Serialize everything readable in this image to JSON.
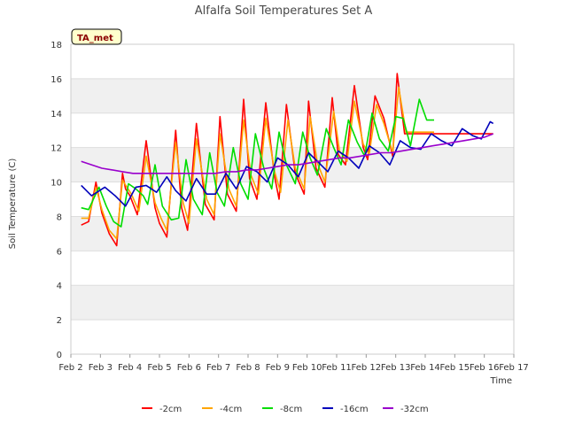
{
  "chart_data": {
    "type": "line",
    "title": "Alfalfa Soil Temperatures Set A",
    "xlabel": "Time",
    "ylabel": "Soil Temperature (C)",
    "badge": "TA_met",
    "xlim": [
      2,
      17
    ],
    "ylim": [
      0,
      18
    ],
    "x_ticks": [
      2,
      3,
      4,
      5,
      6,
      7,
      8,
      9,
      10,
      11,
      12,
      13,
      14,
      15,
      16,
      17
    ],
    "x_tick_labels": [
      "Feb 2",
      "Feb 3",
      "Feb 4",
      "Feb 5",
      "Feb 6",
      "Feb 7",
      "Feb 8",
      "Feb 9",
      "Feb 10",
      "Feb 11",
      "Feb 12",
      "Feb 13",
      "Feb 14",
      "Feb 15",
      "Feb 16",
      "Feb 17"
    ],
    "y_ticks": [
      0,
      2,
      4,
      6,
      8,
      10,
      12,
      14,
      16,
      18
    ],
    "y_tick_labels": [
      "0",
      "2",
      "4",
      "6",
      "8",
      "10",
      "12",
      "14",
      "16",
      "18"
    ],
    "grid": "horizontal bands",
    "legend_position": "bottom",
    "series": [
      {
        "name": "-2cm",
        "color": "#ff0000",
        "x": [
          2.35,
          2.6,
          2.85,
          3.05,
          3.3,
          3.55,
          3.75,
          3.85,
          4.0,
          4.25,
          4.55,
          4.85,
          5.0,
          5.25,
          5.55,
          5.75,
          5.95,
          6.25,
          6.55,
          6.85,
          7.05,
          7.3,
          7.6,
          7.85,
          8.05,
          8.3,
          8.6,
          8.9,
          9.05,
          9.3,
          9.6,
          9.9,
          10.05,
          10.3,
          10.6,
          10.85,
          11.05,
          11.3,
          11.6,
          11.9,
          12.05,
          12.3,
          12.6,
          12.9,
          13.05,
          13.3,
          13.6,
          13.9,
          14.05,
          14.3,
          14.6,
          14.9,
          15.05,
          15.3,
          15.6,
          15.9,
          16.05,
          16.3
        ],
        "y": [
          7.5,
          7.7,
          10.0,
          8.2,
          7.0,
          6.3,
          10.5,
          9.6,
          9.2,
          8.1,
          12.4,
          8.5,
          7.6,
          6.8,
          13.0,
          8.5,
          7.2,
          13.4,
          8.7,
          7.8,
          13.8,
          9.3,
          8.3,
          14.8,
          10.2,
          9.0,
          14.6,
          10.3,
          9.0,
          14.5,
          10.5,
          9.3,
          14.7,
          10.8,
          9.7,
          14.9,
          11.6,
          11.0,
          15.6,
          12.0,
          11.3,
          15.0,
          13.7,
          11.5,
          16.3,
          12.8,
          12.8,
          12.8,
          12.8,
          12.8,
          12.8,
          12.8,
          12.8,
          12.8,
          12.8,
          12.8,
          12.8,
          12.8
        ]
      },
      {
        "name": "-4cm",
        "color": "#ffa500",
        "x": [
          2.35,
          2.6,
          2.85,
          3.05,
          3.3,
          3.55,
          3.75,
          3.9,
          4.05,
          4.3,
          4.55,
          4.85,
          5.05,
          5.25,
          5.55,
          5.8,
          6.0,
          6.25,
          6.6,
          6.85,
          7.05,
          7.35,
          7.6,
          7.85,
          8.1,
          8.35,
          8.6,
          8.9,
          9.1,
          9.35,
          9.6,
          9.9,
          10.1,
          10.35,
          10.6,
          10.9,
          11.1,
          11.35,
          11.6,
          11.9,
          12.1,
          12.35,
          12.6,
          12.9,
          13.1,
          13.35,
          13.6,
          13.9,
          14.1,
          14.3
        ],
        "y": [
          7.9,
          7.9,
          9.7,
          8.4,
          7.2,
          6.7,
          10.1,
          9.7,
          9.3,
          8.3,
          11.5,
          8.8,
          7.9,
          7.2,
          12.3,
          8.8,
          7.6,
          12.5,
          9.0,
          8.1,
          12.8,
          9.6,
          8.6,
          13.6,
          10.4,
          9.3,
          13.7,
          10.6,
          9.4,
          13.6,
          10.8,
          9.6,
          13.8,
          11.1,
          10.0,
          14.1,
          11.8,
          11.2,
          14.7,
          12.2,
          11.6,
          14.5,
          13.4,
          11.7,
          15.5,
          12.9,
          12.9,
          12.9,
          12.9,
          12.9
        ]
      },
      {
        "name": "-8cm",
        "color": "#00dd00",
        "x": [
          2.35,
          2.6,
          2.95,
          3.2,
          3.45,
          3.7,
          3.95,
          4.2,
          4.45,
          4.6,
          4.85,
          5.1,
          5.4,
          5.65,
          5.9,
          6.15,
          6.45,
          6.7,
          6.95,
          7.2,
          7.5,
          7.75,
          8.0,
          8.25,
          8.55,
          8.8,
          9.05,
          9.3,
          9.6,
          9.85,
          10.1,
          10.35,
          10.65,
          10.9,
          11.15,
          11.4,
          11.7,
          11.95,
          12.2,
          12.45,
          12.75,
          13.0,
          13.25,
          13.5,
          13.8,
          14.05,
          14.3
        ],
        "y": [
          8.5,
          8.4,
          9.7,
          8.6,
          7.7,
          7.4,
          9.9,
          9.6,
          9.2,
          8.7,
          11.0,
          8.6,
          7.8,
          7.9,
          11.3,
          9.0,
          8.1,
          11.7,
          9.4,
          8.6,
          12.0,
          9.9,
          9.0,
          12.8,
          10.7,
          9.6,
          12.9,
          11.0,
          9.9,
          12.9,
          11.4,
          10.4,
          13.1,
          12.0,
          11.0,
          13.6,
          12.3,
          11.5,
          14.0,
          12.5,
          11.8,
          13.8,
          13.7,
          12.1,
          14.8,
          13.6,
          13.6
        ]
      },
      {
        "name": "-16cm",
        "color": "#0000bb",
        "x": [
          2.35,
          2.7,
          3.15,
          3.5,
          3.85,
          4.2,
          4.55,
          4.9,
          5.25,
          5.55,
          5.9,
          6.25,
          6.6,
          6.9,
          7.25,
          7.6,
          7.95,
          8.3,
          8.65,
          9.0,
          9.35,
          9.7,
          10.05,
          10.35,
          10.7,
          11.05,
          11.4,
          11.75,
          12.1,
          12.45,
          12.8,
          13.15,
          13.5,
          13.85,
          14.2,
          14.55,
          14.9,
          15.25,
          15.6,
          15.9,
          16.2,
          16.3
        ],
        "y": [
          9.8,
          9.2,
          9.7,
          9.2,
          8.6,
          9.7,
          9.8,
          9.4,
          10.3,
          9.5,
          8.9,
          10.2,
          9.3,
          9.3,
          10.5,
          9.6,
          10.9,
          10.6,
          10.0,
          11.4,
          11.0,
          10.3,
          11.7,
          11.2,
          10.6,
          11.8,
          11.4,
          10.8,
          12.1,
          11.7,
          11.0,
          12.4,
          12.0,
          11.9,
          12.8,
          12.4,
          12.1,
          13.1,
          12.7,
          12.5,
          13.5,
          13.4
        ]
      },
      {
        "name": "-32cm",
        "color": "#9900cc",
        "x": [
          2.35,
          2.7,
          3.05,
          3.4,
          3.75,
          4.1,
          4.45,
          4.8,
          5.15,
          5.5,
          5.85,
          6.2,
          6.55,
          6.9,
          7.25,
          7.6,
          7.95,
          8.3,
          8.65,
          9.0,
          9.35,
          9.7,
          10.05,
          10.4,
          10.75,
          11.1,
          11.45,
          11.8,
          12.15,
          12.5,
          12.85,
          13.2,
          13.55,
          13.9,
          14.25,
          14.6,
          14.95,
          15.3,
          15.65,
          16.0,
          16.3
        ],
        "y": [
          11.2,
          11.0,
          10.8,
          10.7,
          10.6,
          10.5,
          10.5,
          10.5,
          10.5,
          10.5,
          10.5,
          10.5,
          10.5,
          10.5,
          10.6,
          10.6,
          10.7,
          10.7,
          10.8,
          10.9,
          11.0,
          11.0,
          11.1,
          11.2,
          11.3,
          11.4,
          11.4,
          11.5,
          11.6,
          11.7,
          11.7,
          11.8,
          11.9,
          12.0,
          12.1,
          12.2,
          12.3,
          12.4,
          12.5,
          12.6,
          12.8
        ]
      }
    ]
  }
}
